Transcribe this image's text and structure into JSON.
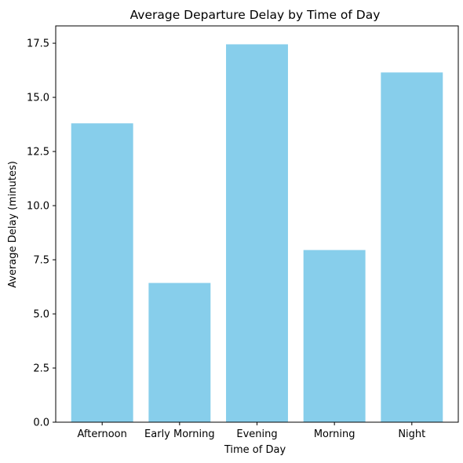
{
  "chart_data": {
    "type": "bar",
    "title": "Average Departure Delay by Time of Day",
    "xlabel": "Time of Day",
    "ylabel": "Average Delay (minutes)",
    "categories": [
      "Afternoon",
      "Early Morning",
      "Evening",
      "Morning",
      "Night"
    ],
    "values": [
      13.8,
      6.43,
      17.45,
      7.95,
      16.15
    ],
    "ylim": [
      0,
      18.3
    ],
    "yticks": [
      0.0,
      2.5,
      5.0,
      7.5,
      10.0,
      12.5,
      15.0,
      17.5
    ],
    "ytick_labels": [
      "0.0",
      "2.5",
      "5.0",
      "7.5",
      "10.0",
      "12.5",
      "15.0",
      "17.5"
    ],
    "grid": false,
    "colors": {
      "bar": "#87ceeb",
      "axis": "#000000",
      "background": "#ffffff"
    }
  }
}
